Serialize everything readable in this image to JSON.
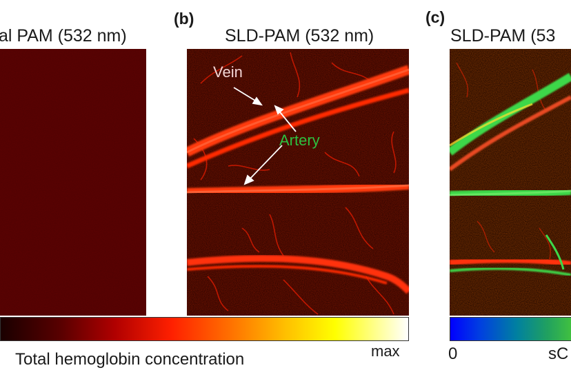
{
  "panel_a": {
    "title": "al PAM (532 nm)"
  },
  "panel_b": {
    "label": "(b)",
    "title": "SLD-PAM (532 nm)",
    "vein_label": "Vein",
    "artery_label": "Artery"
  },
  "panel_c": {
    "label": "(c)",
    "title": "SLD-PAM (53"
  },
  "colorbar_hb": {
    "caption": "Total hemoglobin concentration",
    "max_label": "max",
    "colors": [
      "#1a0000",
      "#5a0000",
      "#b00000",
      "#ff2000",
      "#ff7a00",
      "#ffc000",
      "#ffff00",
      "#ffffff"
    ]
  },
  "colorbar_so2": {
    "min_label": "0",
    "partial_label": "sC",
    "colors": [
      "#0000ff",
      "#0070c0",
      "#20a060",
      "#40c040"
    ]
  },
  "colors": {
    "background_dark": "#4a0000",
    "vessel_red": "#ff2a00",
    "artery_text": "#2ec040",
    "vein_text": "#f3d6d6",
    "so2_green": "#3dd84a"
  }
}
